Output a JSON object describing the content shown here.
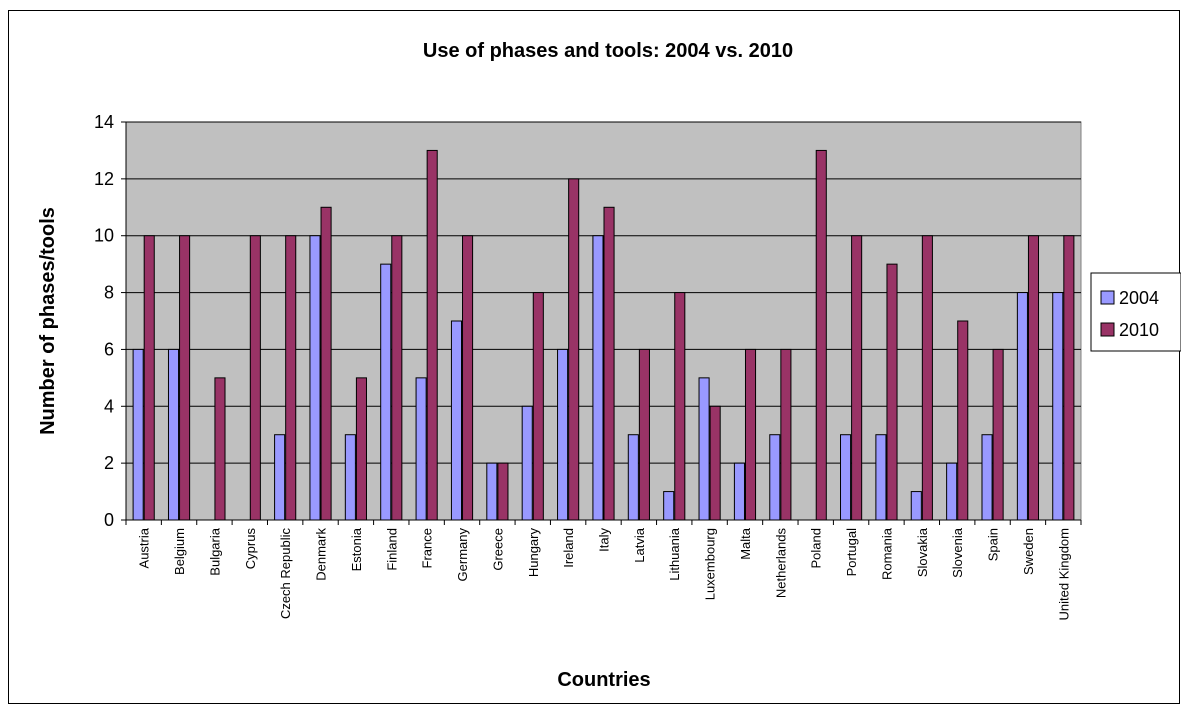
{
  "chart_data": {
    "type": "bar",
    "title": "Use of phases and tools: 2004 vs. 2010",
    "xlabel": "Countries",
    "ylabel": "Number of phases/tools",
    "ylim": [
      0,
      14
    ],
    "yticks": [
      0,
      2,
      4,
      6,
      8,
      10,
      12,
      14
    ],
    "grid": true,
    "legend_position": "right",
    "plot_background": "#C0C0C0",
    "categories": [
      "Austria",
      "Belgium",
      "Bulgaria",
      "Cyprus",
      "Czech Republic",
      "Denmark",
      "Estonia",
      "Finland",
      "France",
      "Germany",
      "Greece",
      "Hungary",
      "Ireland",
      "Italy",
      "Latvia",
      "Lithuania",
      "Luxembourg",
      "Malta",
      "Netherlands",
      "Poland",
      "Portugal",
      "Romania",
      "Slovakia",
      "Slovenia",
      "Spain",
      "Sweden",
      "United Kingdom"
    ],
    "series": [
      {
        "name": "2004",
        "color": "#9999FF",
        "values": [
          6,
          6,
          0,
          0,
          3,
          10,
          3,
          9,
          5,
          7,
          2,
          4,
          6,
          10,
          3,
          1,
          5,
          2,
          3,
          0,
          3,
          3,
          1,
          2,
          3,
          8,
          8
        ]
      },
      {
        "name": "2010",
        "color": "#993366",
        "values": [
          10,
          10,
          5,
          10,
          10,
          11,
          5,
          10,
          13,
          10,
          2,
          8,
          12,
          11,
          6,
          8,
          4,
          6,
          6,
          13,
          10,
          9,
          10,
          7,
          6,
          10,
          10
        ]
      }
    ]
  }
}
